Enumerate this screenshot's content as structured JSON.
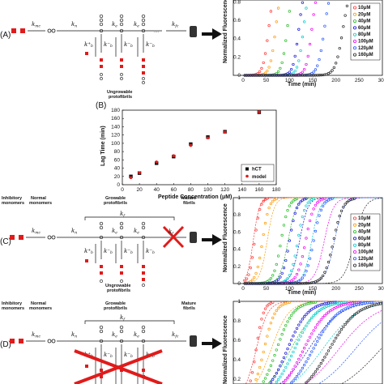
{
  "panels": {
    "A": "(A)",
    "B": "(B)",
    "C": "(C)",
    "D": "(D)"
  },
  "scheme_labels": {
    "k_mc": "k",
    "k_mc_sub": "mc",
    "k_n": "k",
    "k_n_sub": "n",
    "k_e": "k",
    "k_e_sub": "e",
    "k_fc": "k",
    "k_fc_sub": "fc",
    "k_f": "k",
    "k_f_sub": "f",
    "k_b": "k",
    "k_b_sub": "b",
    "dots": "....",
    "ungrowable": "Ungrowable\nprotofibrils",
    "inhibitory": "Inhibitory\nmonomers",
    "normal": "Normal\nmonomers",
    "growable": "Growable\nprotofibrils",
    "mature": "Mature\nfibrils"
  },
  "legend_conc": [
    "10μM",
    "20μM",
    "40μM",
    "60μM",
    "80μM",
    "100μM",
    "120μM",
    "160μM"
  ],
  "colors": {
    "c10": "#ff3333",
    "c20": "#ff9900",
    "c40": "#22bb22",
    "c60": "#1111dd",
    "c80": "#00cccc",
    "c100": "#ee00ee",
    "c120": "#2255ff",
    "c160": "#222222",
    "red": "#e01b1b",
    "black": "#111111"
  },
  "fluor_axis": {
    "ylabel": "Normalized Fluorescence",
    "xlabel": "Time (min)",
    "yticks_A": [
      "0.8",
      "0.6",
      "0.4",
      "0.2",
      "0"
    ],
    "xticks_A": [
      "0",
      "50",
      "100",
      "150",
      "200",
      "250",
      "300"
    ],
    "yticks_C": [
      "1",
      "0.8",
      "0.6",
      "0.4",
      "0.2",
      "0"
    ],
    "xticks_C": [
      "0",
      "50",
      "100",
      "150",
      "200",
      "250",
      "300"
    ],
    "yticks_D": [
      "1",
      "0.8",
      "0.6",
      "0.4",
      "0.2"
    ]
  },
  "chart_data": [
    {
      "type": "scatter",
      "panel": "B",
      "xlabel": "Peptide Concentration (μM)",
      "ylabel": "Lag Time (min)",
      "xlim": [
        0,
        180
      ],
      "ylim": [
        0,
        180
      ],
      "xticks": [
        "0",
        "20",
        "40",
        "60",
        "80",
        "100",
        "120",
        "140",
        "160",
        "180"
      ],
      "yticks": [
        "0",
        "20",
        "40",
        "60",
        "80",
        "100",
        "120",
        "140",
        "160",
        "180"
      ],
      "legend": [
        "hCT",
        "model"
      ],
      "legend_position": "bottom-right",
      "series": [
        {
          "name": "hCT",
          "x": [
            10,
            20,
            40,
            60,
            80,
            100,
            120,
            160
          ],
          "y": [
            20,
            28,
            52,
            68,
            98,
            115,
            128,
            175
          ]
        },
        {
          "name": "model",
          "x": [
            10,
            20,
            40,
            60,
            80,
            100,
            120,
            160
          ],
          "y": [
            17,
            29,
            55,
            70,
            95,
            113,
            127,
            176
          ]
        }
      ]
    }
  ]
}
